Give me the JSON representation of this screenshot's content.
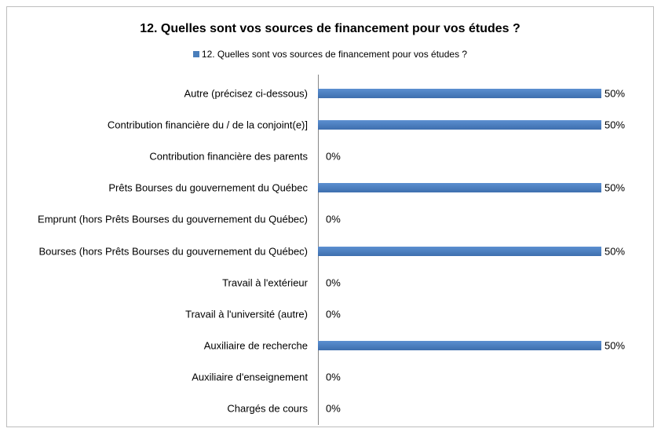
{
  "chart_data": {
    "type": "bar",
    "orientation": "horizontal",
    "title": "12. Quelles sont vos sources de financement pour vos études ?",
    "categories": [
      "Autre (précisez ci-dessous)",
      "Contribution financière du / de la conjoint(e)]",
      "Contribution financière des parents",
      "Prêts Bourses du gouvernement du Québec",
      "Emprunt (hors Prêts Bourses du gouvernement du Québec)",
      "Bourses (hors Prêts Bourses du gouvernement du Québec)",
      "Travail à l'extérieur",
      "Travail à l'université (autre)",
      "Auxiliaire de recherche",
      "Auxiliaire d'enseignement",
      "Chargés de cours"
    ],
    "series": [
      {
        "name": "12. Quelles sont vos sources de financement pour vos études ?",
        "color": "#4a7ebb",
        "values": [
          50,
          50,
          0,
          50,
          0,
          50,
          0,
          0,
          50,
          0,
          0
        ],
        "value_labels": [
          "50%",
          "50%",
          "0%",
          "50%",
          "0%",
          "50%",
          "0%",
          "0%",
          "50%",
          "0%",
          "0%"
        ]
      }
    ]
  }
}
